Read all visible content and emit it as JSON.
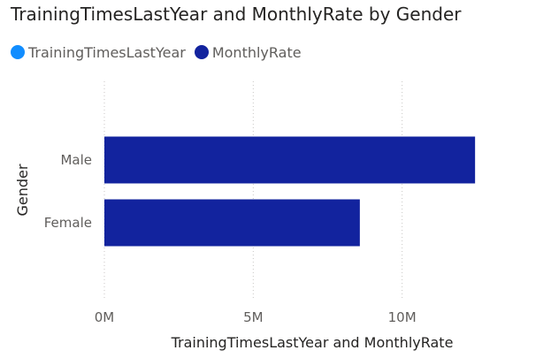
{
  "chart_data": {
    "type": "bar",
    "orientation": "horizontal",
    "title": "TrainingTimesLastYear and MonthlyRate by Gender",
    "xlabel": "TrainingTimesLastYear and MonthlyRate",
    "ylabel": "Gender",
    "categories": [
      "Male",
      "Female"
    ],
    "series": [
      {
        "name": "TrainingTimesLastYear",
        "color": "#118dff",
        "values": [
          2400,
          1650
        ]
      },
      {
        "name": "MonthlyRate",
        "color": "#12239e",
        "values": [
          12450000,
          8580000
        ]
      }
    ],
    "xlim": [
      0,
      15000000
    ],
    "x_ticks": [
      0,
      5000000,
      10000000
    ],
    "x_tick_labels": [
      "0M",
      "5M",
      "10M"
    ],
    "grid": true,
    "legend_position": "top-left"
  }
}
